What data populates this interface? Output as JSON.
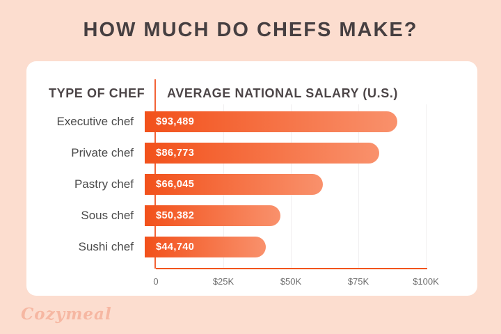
{
  "title": "HOW MUCH DO CHEFS MAKE?",
  "table": {
    "col1_header": "TYPE OF CHEF",
    "col2_header": "AVERAGE NATIONAL SALARY (U.S.)"
  },
  "chart_data": {
    "type": "bar",
    "orientation": "horizontal",
    "title": "HOW MUCH DO CHEFS MAKE?",
    "categories": [
      "Executive chef",
      "Private chef",
      "Pastry chef",
      "Sous chef",
      "Sushi chef"
    ],
    "values": [
      93489,
      86773,
      66045,
      50382,
      44740
    ],
    "value_labels": [
      "$93,489",
      "$86,773",
      "$66,045",
      "$50,382",
      "$44,740"
    ],
    "xlabel": "",
    "ylabel": "",
    "xlim": [
      0,
      100000
    ],
    "x_ticks": [
      "0",
      "$25K",
      "$50K",
      "$75K",
      "$100K"
    ],
    "x_tick_values": [
      0,
      25000,
      50000,
      75000,
      100000
    ],
    "grid": true,
    "legend": "none",
    "bar_gradient_start": "#f2511b",
    "bar_gradient_end": "#f9916c",
    "axis_color": "#f2551c",
    "divider_color": "#f26236",
    "gridline_color": "#f1eff0"
  },
  "footer": {
    "logo_text": "Cozymeal"
  },
  "colors": {
    "page_background": "#fcddcf",
    "card_background": "#ffffff",
    "title_text": "#463f41",
    "header_text": "#4c4547",
    "category_text": "#4a4a4a",
    "bar_value_text": "#ffffff",
    "tick_text": "#6e6e6e",
    "logo_text": "#f6b7a2"
  }
}
